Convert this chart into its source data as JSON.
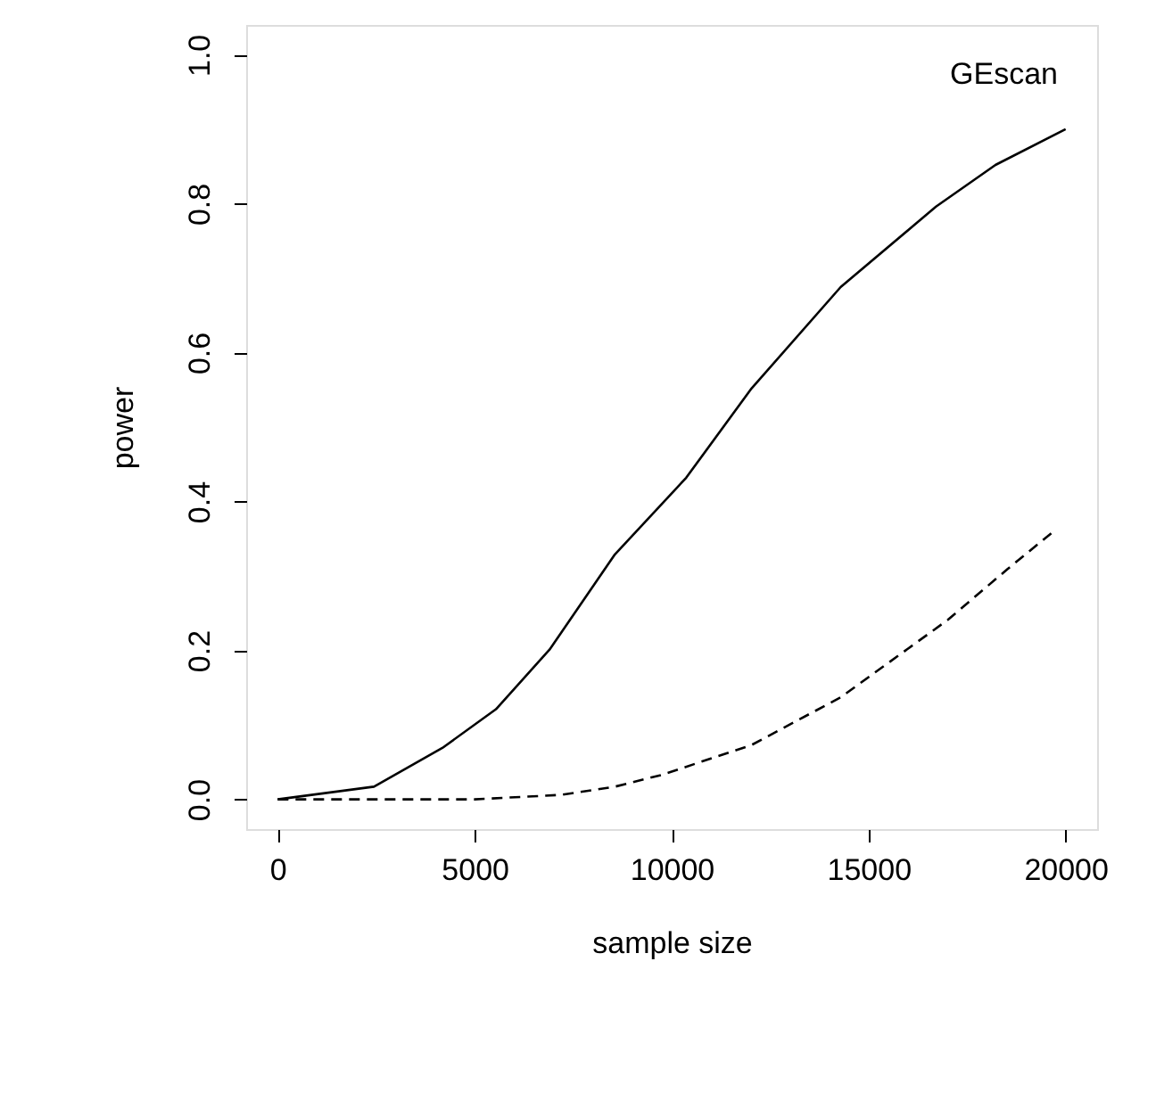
{
  "chart_data": {
    "type": "line",
    "xlabel": "sample size",
    "ylabel": "power",
    "annotations": [
      "GEscan"
    ],
    "xlim": [
      -800,
      20800
    ],
    "ylim": [
      -0.04,
      1.04
    ],
    "xticks": [
      0,
      5000,
      10000,
      15000,
      20000
    ],
    "yticks": [
      {
        "value": 0,
        "label": "0.0"
      },
      {
        "value": 0.2,
        "label": "0.2"
      },
      {
        "value": 0.4,
        "label": "0.4"
      },
      {
        "value": 0.6,
        "label": "0.6"
      },
      {
        "value": 0.8,
        "label": "0.8"
      },
      {
        "value": 1.0,
        "label": "1.0"
      }
    ],
    "grid": false,
    "marker": "none",
    "series": [
      {
        "color": "#000000",
        "line_style": "solid",
        "x": [
          0,
          2445,
          4180,
          5540,
          6900,
          8560,
          10370,
          12030,
          14290,
          16710,
          18220,
          20000
        ],
        "values": [
          0,
          0.017,
          0.069,
          0.121,
          0.201,
          0.329,
          0.432,
          0.552,
          0.688,
          0.796,
          0.852,
          0.9
        ]
      },
      {
        "color": "#000000",
        "line_style": "dashed",
        "x": [
          0,
          5000,
          7200,
          8560,
          9760,
          12030,
          14290,
          17010,
          18520,
          19720
        ],
        "values": [
          0,
          0,
          0.006,
          0.017,
          0.033,
          0.073,
          0.137,
          0.241,
          0.309,
          0.361
        ]
      }
    ]
  }
}
